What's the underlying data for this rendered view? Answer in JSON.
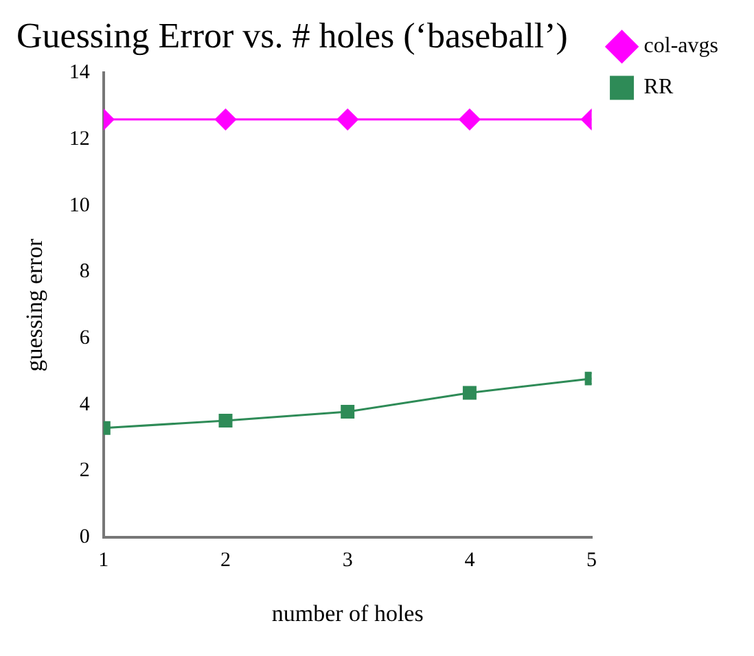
{
  "chart_data": {
    "type": "line",
    "title": "Guessing Error vs. # holes (‘baseball’)",
    "xlabel": "number of holes",
    "ylabel": "guessing error",
    "x": [
      1,
      2,
      3,
      4,
      5
    ],
    "xlim": [
      1,
      5
    ],
    "xticks": [
      1,
      2,
      3,
      4,
      5
    ],
    "ylim": [
      0,
      14
    ],
    "yticks": [
      0,
      2,
      4,
      6,
      8,
      10,
      12,
      14
    ],
    "grid": false,
    "legend": "top right",
    "series": [
      {
        "name": "col-avgs",
        "color": "#ff00ff",
        "marker": "diamond",
        "values": [
          12.6,
          12.6,
          12.6,
          12.6,
          12.6
        ]
      },
      {
        "name": "RR",
        "color": "#2e8b57",
        "marker": "square",
        "values": [
          3.3,
          3.52,
          3.79,
          4.36,
          4.79
        ]
      }
    ]
  }
}
